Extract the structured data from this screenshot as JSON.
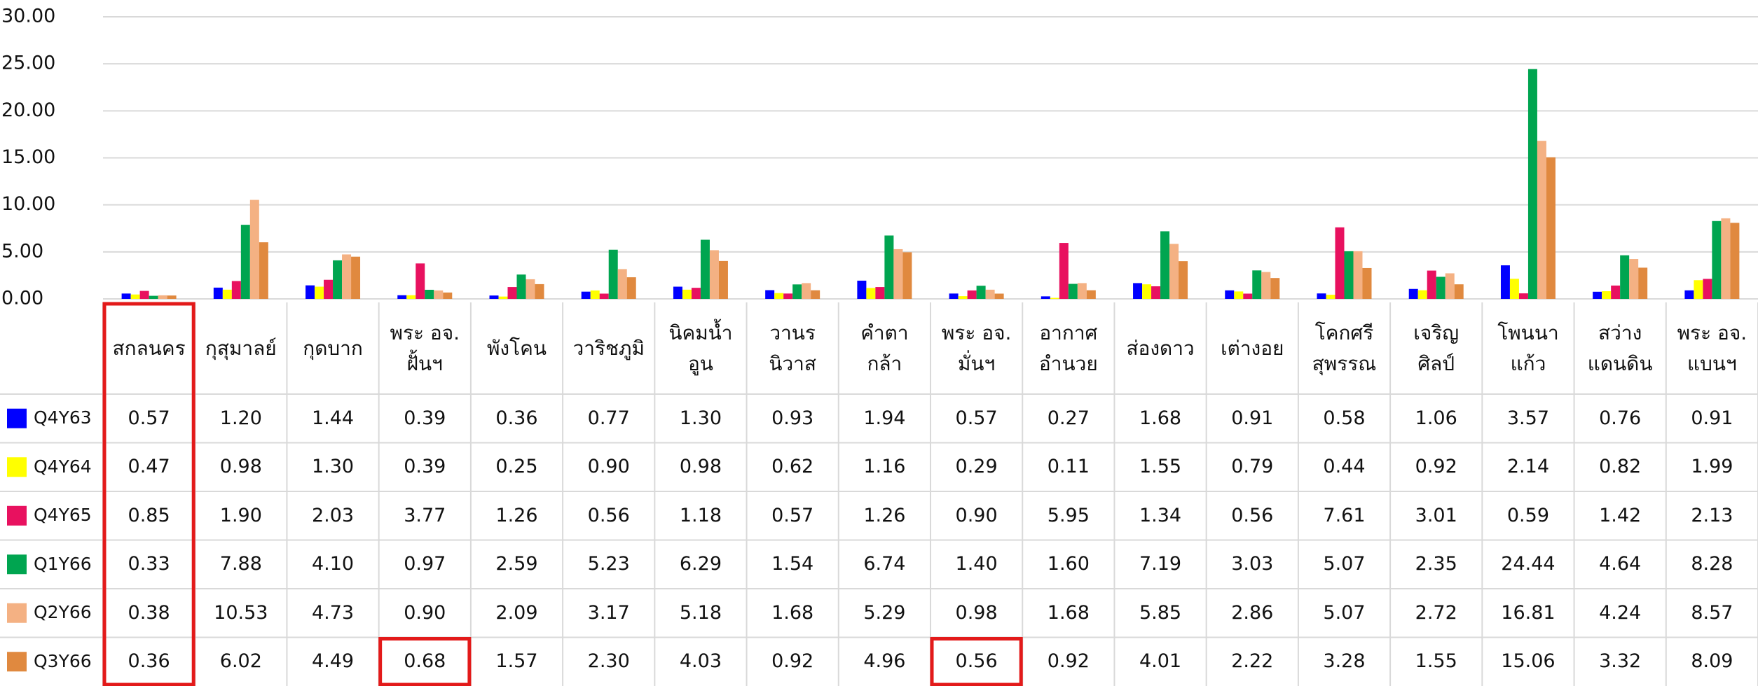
{
  "chart_data": {
    "type": "bar",
    "categories": [
      "สกลนคร",
      "กุสุมาลย์",
      "กุดบาก",
      "พระ อจ.\nฝั้นฯ",
      "พังโคน",
      "วาริชภูมิ",
      "นิคมน้ำ\nอูน",
      "วานร\nนิวาส",
      "คำตา\nกล้า",
      "พระ อจ.\nมั่นฯ",
      "อากาศ\nอำนวย",
      "ส่องดาว",
      "เต่างอย",
      "โคกศรี\nสุพรรณ",
      "เจริญ\nศิลป์",
      "โพนนา\nแก้ว",
      "สว่าง\nแดนดิน",
      "พระ อจ.\nแบนฯ"
    ],
    "series": [
      {
        "name": "Q4Y63",
        "color": "#0000ff",
        "values": [
          0.57,
          1.2,
          1.44,
          0.39,
          0.36,
          0.77,
          1.3,
          0.93,
          1.94,
          0.57,
          0.27,
          1.68,
          0.91,
          0.58,
          1.06,
          3.57,
          0.76,
          0.91
        ],
        "value_labels": [
          "0.57",
          "1.20",
          "1.44",
          "0.39",
          "0.36",
          "0.77",
          "1.30",
          "0.93",
          "1.94",
          "0.57",
          "0.27",
          "1.68",
          "0.91",
          "0.58",
          "1.06",
          "3.57",
          "0.76",
          "0.91"
        ]
      },
      {
        "name": "Q4Y64",
        "color": "#ffff00",
        "values": [
          0.47,
          0.98,
          1.3,
          0.39,
          0.25,
          0.9,
          0.98,
          0.62,
          1.16,
          0.29,
          0.11,
          1.55,
          0.79,
          0.44,
          0.92,
          2.14,
          0.82,
          1.99
        ],
        "value_labels": [
          "0.47",
          "0.98",
          "1.30",
          "0.39",
          "0.25",
          "0.90",
          "0.98",
          "0.62",
          "1.16",
          "0.29",
          "0.11",
          "1.55",
          "0.79",
          "0.44",
          "0.92",
          "2.14",
          "0.82",
          "1.99"
        ]
      },
      {
        "name": "Q4Y65",
        "color": "#e8115f",
        "values": [
          0.85,
          1.9,
          2.03,
          3.77,
          1.26,
          0.56,
          1.18,
          0.57,
          1.26,
          0.9,
          5.95,
          1.34,
          0.56,
          7.61,
          3.01,
          0.59,
          1.42,
          2.13
        ],
        "value_labels": [
          "0.85",
          "1.90",
          "2.03",
          "3.77",
          "1.26",
          "0.56",
          "1.18",
          "0.57",
          "1.26",
          "0.90",
          "5.95",
          "1.34",
          "0.56",
          "7.61",
          "3.01",
          "0.59",
          "1.42",
          "2.13"
        ]
      },
      {
        "name": "Q1Y66",
        "color": "#00a550",
        "values": [
          0.33,
          7.88,
          4.1,
          0.97,
          2.59,
          5.23,
          6.29,
          1.54,
          6.74,
          1.4,
          1.6,
          7.19,
          3.03,
          5.07,
          2.35,
          24.44,
          4.64,
          8.28
        ],
        "value_labels": [
          "0.33",
          "7.88",
          "4.10",
          "0.97",
          "2.59",
          "5.23",
          "6.29",
          "1.54",
          "6.74",
          "1.40",
          "1.60",
          "7.19",
          "3.03",
          "5.07",
          "2.35",
          "24.44",
          "4.64",
          "8.28"
        ]
      },
      {
        "name": "Q2Y66",
        "color": "#f4b183",
        "values": [
          0.38,
          10.53,
          4.73,
          0.9,
          2.09,
          3.17,
          5.18,
          1.68,
          5.29,
          0.98,
          1.68,
          5.85,
          2.86,
          5.07,
          2.72,
          16.81,
          4.24,
          8.57
        ],
        "value_labels": [
          "0.38",
          "10.53",
          "4.73",
          "0.90",
          "2.09",
          "3.17",
          "5.18",
          "1.68",
          "5.29",
          "0.98",
          "1.68",
          "5.85",
          "2.86",
          "5.07",
          "2.72",
          "16.81",
          "4.24",
          "8.57"
        ]
      },
      {
        "name": "Q3Y66",
        "color": "#e0893f",
        "values": [
          0.36,
          6.02,
          4.49,
          0.68,
          1.57,
          2.3,
          4.03,
          0.92,
          4.96,
          0.56,
          0.92,
          4.01,
          2.22,
          3.28,
          1.55,
          15.06,
          3.32,
          8.09
        ],
        "value_labels": [
          "0.36",
          "6.02",
          "4.49",
          "0.68",
          "1.57",
          "2.30",
          "4.03",
          "0.92",
          "4.96",
          "0.56",
          "0.92",
          "4.01",
          "2.22",
          "3.28",
          "1.55",
          "15.06",
          "3.32",
          "8.09"
        ]
      }
    ],
    "ylim": [
      0,
      30
    ],
    "yticks": [
      {
        "value": 0,
        "label": "0.00"
      },
      {
        "value": 5,
        "label": "5.00"
      },
      {
        "value": 10,
        "label": "10.00"
      },
      {
        "value": 15,
        "label": "15.00"
      },
      {
        "value": 20,
        "label": "20.00"
      },
      {
        "value": 25,
        "label": "25.00"
      },
      {
        "value": 30,
        "label": "30.00"
      }
    ],
    "grid": true
  }
}
